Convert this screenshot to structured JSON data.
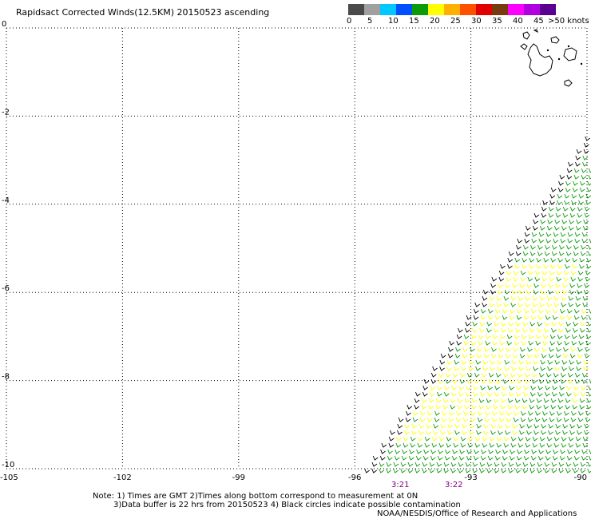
{
  "header": {
    "title": "Rapidsact Corrected Winds(12.5KM) 20150523 ascending"
  },
  "colorscale": {
    "bins": [
      {
        "color": "#4a4a4a"
      },
      {
        "color": "#a0a0a0"
      },
      {
        "color": "#00c8ff"
      },
      {
        "color": "#0050ff"
      },
      {
        "color": "#0a9a0a"
      },
      {
        "color": "#ffff00"
      },
      {
        "color": "#ffb000"
      },
      {
        "color": "#ff5000"
      },
      {
        "color": "#e00000"
      },
      {
        "color": "#7a3a10"
      },
      {
        "color": "#ff00ff"
      },
      {
        "color": "#b000e0"
      },
      {
        "color": "#5a0090"
      }
    ],
    "labels": [
      "0",
      "5",
      "10",
      "15",
      "20",
      "25",
      "30",
      "35",
      "40",
      "45"
    ],
    "unit_label": ">50 knots"
  },
  "axes": {
    "lat_ticks": [
      "0",
      "-2",
      "-4",
      "-6",
      "-8",
      "-10"
    ],
    "lon_ticks": [
      "-105",
      "-102",
      "-99",
      "-96",
      "-93",
      "-90"
    ]
  },
  "times": [
    {
      "label": "3:21",
      "color": "#800080"
    },
    {
      "label": "3:22",
      "color": "#800080"
    }
  ],
  "footer": {
    "note_line1": "Note: 1) Times are GMT 2)Times along bottom correspond to measurement at 0N",
    "note_line2": "3)Data buffer is 22 hrs from 20150523 4) Black circles indicate possible contamination",
    "credit": "NOAA/NESDIS/Office of Research and Applications"
  },
  "map": {
    "lon_range": [
      -105,
      -90
    ],
    "lat_range": [
      -10,
      0
    ],
    "grid": true,
    "wind_colors": {
      "edge": "#000000",
      "low": "#0a9a0a",
      "mid": "#ffff00"
    },
    "land_color": "#000000"
  }
}
